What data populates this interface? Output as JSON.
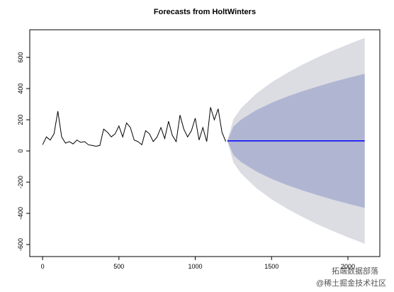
{
  "chart_data": {
    "type": "forecast",
    "title": "Forecasts from HoltWinters",
    "x": [
      0,
      25,
      50,
      75,
      100,
      125,
      150,
      175,
      200,
      225,
      250,
      275,
      300,
      325,
      350,
      375,
      400,
      425,
      450,
      475,
      500,
      525,
      550,
      575,
      600,
      625,
      650,
      675,
      700,
      725,
      750,
      775,
      800,
      825,
      850,
      875,
      900,
      925,
      950,
      975,
      1000,
      1025,
      1050,
      1075,
      1100,
      1125,
      1150,
      1175,
      1200
    ],
    "values": [
      40,
      90,
      70,
      110,
      255,
      90,
      50,
      60,
      45,
      70,
      55,
      60,
      40,
      35,
      30,
      35,
      140,
      120,
      90,
      110,
      160,
      90,
      180,
      150,
      70,
      60,
      40,
      130,
      110,
      60,
      90,
      150,
      80,
      190,
      100,
      60,
      230,
      140,
      90,
      130,
      210,
      70,
      150,
      60,
      280,
      200,
      270,
      120,
      60
    ],
    "color": "#000000",
    "forecast": {
      "x": [
        1210,
        1250,
        1300,
        1400,
        1500,
        1600,
        1700,
        1800,
        1900,
        2000,
        2110
      ],
      "mean": [
        65,
        65,
        65,
        65,
        65,
        65,
        65,
        65,
        65,
        65,
        65
      ],
      "lower80": [
        65,
        -26,
        -71,
        -132,
        -179,
        -218,
        -252,
        -283,
        -312,
        -338,
        -365
      ],
      "upper80": [
        65,
        156,
        201,
        262,
        309,
        348,
        382,
        413,
        442,
        468,
        495
      ],
      "lower95": [
        65,
        -74,
        -144,
        -238,
        -310,
        -369,
        -422,
        -470,
        -513,
        -553,
        -595
      ],
      "upper95": [
        65,
        204,
        274,
        368,
        440,
        499,
        552,
        600,
        643,
        683,
        725
      ],
      "color": "#0000ff",
      "color80": "#b0b6d2",
      "color95": "#dcdce3"
    },
    "xlim": [
      -84,
      2209
    ],
    "ylim": [
      -677,
      777
    ],
    "xticks": [
      0,
      500,
      1000,
      1500,
      2000
    ],
    "yticks": [
      -600,
      -400,
      -200,
      0,
      200,
      400,
      600
    ],
    "watermark": [
      "拓端数据部落",
      "@稀土掘金技术社区"
    ]
  }
}
